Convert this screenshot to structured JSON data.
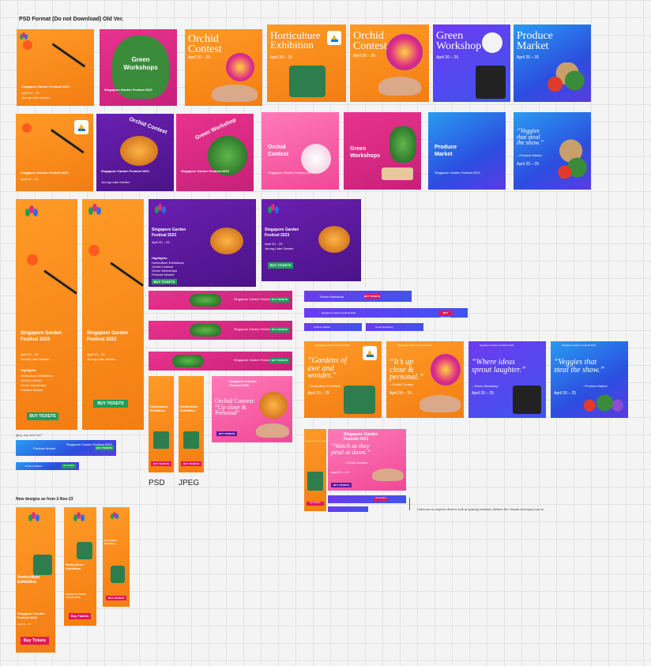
{
  "canvas": {
    "heading": "PSD Format (Do not Download) Old Ver.",
    "section_new": "New designs as from 2-Nov-23",
    "label_psd": "PSD",
    "label_jpeg": "JPEG",
    "small_note": "jpeg, any size etc?",
    "annotation": "Unknown to request client to look at spacing between (Where the Visuals and logo) how to"
  },
  "festival": {
    "name": "Singapore Garden Festival 2023",
    "dates": "April 20 – 25",
    "venue": "Jurong Lake Garden",
    "buy": "BUY TICKETS",
    "buy_lower": "Buy Tickets",
    "highlights_title": "Highlights",
    "highlights": [
      "Horticulture Exhibitions",
      "Orchid Contest",
      "Green Workshops",
      "Produce Market"
    ]
  },
  "banners": {
    "orchid": "Orchid Contest",
    "horti": "Horticulture Exhibition",
    "green": "Green Workshop",
    "green_pl": "Green Workshops",
    "produce": "Produce Market",
    "veggies": "“Veggies that steal the show.”",
    "veggies_sub": "– Produce Market",
    "gardens": "“Gardens of awe and wonder.”",
    "gardens_sub": "– Horticulture Exhibition",
    "upclose": "“It’s up close & personal.”",
    "upclose_sub": "– Orchid Contest",
    "ideas": "“Where ideas sprout laughter.”",
    "ideas_sub": "– Green Workshop",
    "petal": "“Watch as they petal at dawn.”",
    "petal_sub": "– Orchid Contest",
    "upclose2": "Orchid Contest: “Up close & Personal”",
    "dates_big": "April 20 – 25"
  },
  "colors": {
    "orange": "#f58a1f",
    "pink": "#e02b85",
    "purple": "#5a1a9c",
    "blue": "#2b6fe8",
    "green": "#1e9e5a"
  }
}
